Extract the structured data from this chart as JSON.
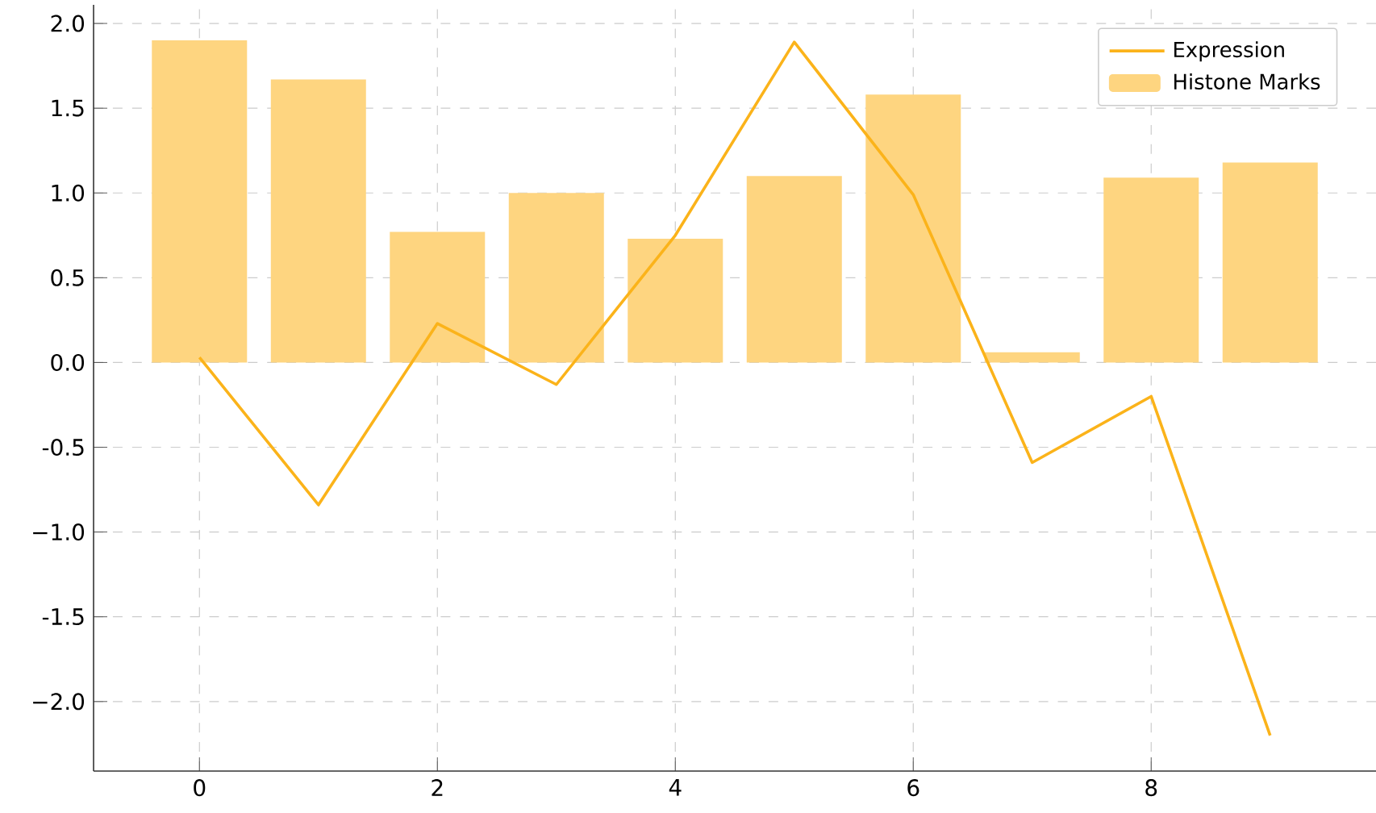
{
  "chart_data": {
    "type": "bar",
    "x": [
      0,
      1,
      2,
      3,
      4,
      5,
      6,
      7,
      8,
      9
    ],
    "series": [
      {
        "name": "Expression",
        "type": "line",
        "color": "#fbb31a",
        "values": [
          0.03,
          -0.84,
          0.23,
          -0.13,
          0.75,
          1.89,
          0.99,
          -0.59,
          -0.2,
          -2.2
        ]
      },
      {
        "name": "Histone Marks",
        "color": "#fed580",
        "values": [
          1.9,
          1.67,
          0.77,
          1.0,
          0.73,
          1.1,
          1.58,
          0.06,
          1.09,
          1.18
        ]
      }
    ],
    "xlim": [
      -0.89,
      9.89
    ],
    "ylim": [
      -2.41,
      2.11
    ],
    "xticks": [
      0,
      2,
      4,
      6,
      8
    ],
    "yticks": [
      {
        "value": -2,
        "label": "−2.0"
      },
      -1.5,
      {
        "value": -1,
        "label": "−1.0"
      },
      -0.5,
      {
        "value": 0,
        "label": "0.0"
      },
      0.5,
      {
        "value": 1,
        "label": "1.0"
      },
      1.5,
      {
        "value": 2,
        "label": "2.0"
      }
    ],
    "grid": true,
    "legend": "top right"
  }
}
